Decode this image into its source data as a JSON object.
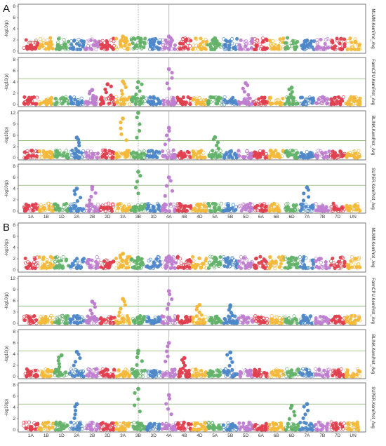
{
  "chart_data": {
    "type": "scatter",
    "chromosomes": [
      "1A",
      "1B",
      "1D",
      "2A",
      "2B",
      "2D",
      "3A",
      "3B",
      "3D",
      "4A",
      "4B",
      "4D",
      "5A",
      "5B",
      "5D",
      "6A",
      "6B",
      "6D",
      "7A",
      "7B",
      "7D",
      "UN"
    ],
    "chromosome_colors": [
      "#e0404f",
      "#f4b93a",
      "#64b36a",
      "#4e88c9",
      "#bf7fd0"
    ],
    "y_label": "-log10(p)",
    "highlight_chromosomes": [
      "3B",
      "4A"
    ],
    "panels": [
      {
        "label": "A",
        "rows": [
          {
            "method": "MLMM.KernProt_Avg",
            "ylim": [
              0,
              8
            ],
            "yticks": [
              0,
              2,
              4,
              6,
              8
            ],
            "threshold": null,
            "peaks": [
              {
                "chr": "3A",
                "value": 2.6
              },
              {
                "chr": "3B",
                "value": 2.4
              },
              {
                "chr": "3D",
                "value": 1.9
              },
              {
                "chr": "4A",
                "value": 2.6
              },
              {
                "chr": "5A",
                "value": 2.3
              },
              {
                "chr": "7A",
                "value": 1.9
              }
            ]
          },
          {
            "method": "FarmCPU.KernProt_Avg",
            "ylim": [
              0,
              8
            ],
            "yticks": [
              0,
              2,
              4,
              6,
              8
            ],
            "threshold": 4.6,
            "peaks": [
              {
                "chr": "2B",
                "value": 2.6
              },
              {
                "chr": "2D",
                "value": 3.6
              },
              {
                "chr": "3A",
                "value": 4.1
              },
              {
                "chr": "3B",
                "value": 4.0
              },
              {
                "chr": "4A",
                "value": 6.3
              },
              {
                "chr": "5D",
                "value": 3.8
              },
              {
                "chr": "6D",
                "value": 3.0
              }
            ]
          },
          {
            "method": "BLINK.KernProt_Avg",
            "ylim": [
              0,
              12
            ],
            "yticks": [
              0,
              3,
              6,
              9,
              12
            ],
            "threshold": 4.6,
            "peaks": [
              {
                "chr": "2A",
                "value": 5.4
              },
              {
                "chr": "3A",
                "value": 10.5
              },
              {
                "chr": "3B",
                "value": 12.0
              },
              {
                "chr": "4A",
                "value": 8.0
              },
              {
                "chr": "5A",
                "value": 5.5
              }
            ]
          },
          {
            "method": "SUPER.KernProt_Avg",
            "ylim": [
              0,
              8
            ],
            "yticks": [
              0,
              2,
              4,
              6,
              8
            ],
            "threshold": 4.6,
            "peaks": [
              {
                "chr": "2A",
                "value": 4.0
              },
              {
                "chr": "2B",
                "value": 4.3
              },
              {
                "chr": "3B",
                "value": 7.0
              },
              {
                "chr": "4A",
                "value": 6.0
              },
              {
                "chr": "7A",
                "value": 4.2
              }
            ]
          }
        ]
      },
      {
        "label": "B",
        "rows": [
          {
            "method": "MLMM.KernProt_Avg",
            "ylim": [
              0,
              8
            ],
            "yticks": [
              0,
              2,
              4,
              6,
              8
            ],
            "threshold": null,
            "peaks": [
              {
                "chr": "3A",
                "value": 2.9
              },
              {
                "chr": "3B",
                "value": 2.2
              },
              {
                "chr": "4A",
                "value": 2.4
              },
              {
                "chr": "5A",
                "value": 2.2
              },
              {
                "chr": "6D",
                "value": 2.2
              }
            ]
          },
          {
            "method": "FarmCPU.KernProt_Avg",
            "ylim": [
              0,
              12
            ],
            "yticks": [
              0,
              3,
              6,
              9,
              12
            ],
            "threshold": 4.6,
            "peaks": [
              {
                "chr": "2B",
                "value": 5.8
              },
              {
                "chr": "3A",
                "value": 6.5
              },
              {
                "chr": "4A",
                "value": 8.6
              },
              {
                "chr": "4D",
                "value": 4.9
              },
              {
                "chr": "5B",
                "value": 4.8
              }
            ]
          },
          {
            "method": "BLINK.KernProt_Avg",
            "ylim": [
              0,
              8
            ],
            "yticks": [
              0,
              2,
              4,
              6,
              8
            ],
            "threshold": 4.6,
            "peaks": [
              {
                "chr": "1D",
                "value": 3.8
              },
              {
                "chr": "2A",
                "value": 4.4
              },
              {
                "chr": "3B",
                "value": 4.6
              },
              {
                "chr": "4A",
                "value": 6.0
              },
              {
                "chr": "4B",
                "value": 3.3
              },
              {
                "chr": "5B",
                "value": 4.3
              }
            ]
          },
          {
            "method": "SUPER.KernProt_Avg",
            "ylim": [
              0,
              8
            ],
            "yticks": [
              0,
              2,
              4,
              6,
              8
            ],
            "threshold": 4.6,
            "peaks": [
              {
                "chr": "2A",
                "value": 4.6
              },
              {
                "chr": "3B",
                "value": 7.3
              },
              {
                "chr": "4A",
                "value": 6.2
              },
              {
                "chr": "6D",
                "value": 4.3
              },
              {
                "chr": "7A",
                "value": 4.6
              }
            ]
          }
        ]
      }
    ]
  }
}
